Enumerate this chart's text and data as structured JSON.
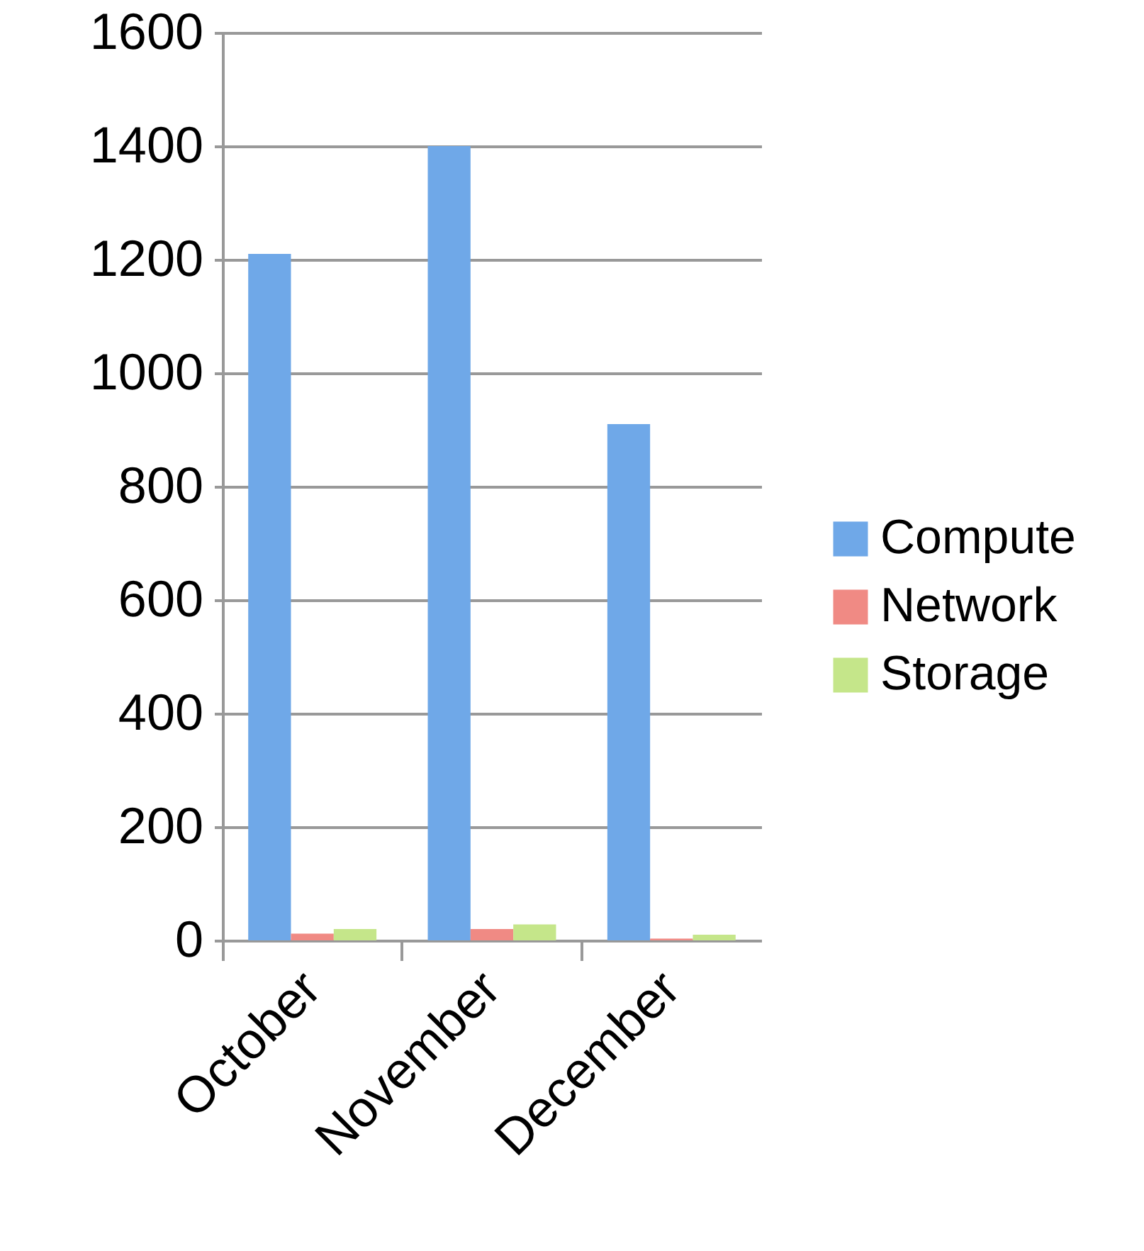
{
  "chart_data": {
    "type": "bar",
    "categories": [
      "October",
      "November",
      "December"
    ],
    "series": [
      {
        "name": "Compute",
        "color": "#6fa8e8",
        "values": [
          1210,
          1400,
          910
        ]
      },
      {
        "name": "Network",
        "color": "#f08a84",
        "values": [
          12,
          20,
          3
        ]
      },
      {
        "name": "Storage",
        "color": "#c5e68a",
        "values": [
          20,
          28,
          10
        ]
      }
    ],
    "ylim": [
      0,
      1600
    ],
    "yticks": [
      0,
      200,
      400,
      600,
      800,
      1000,
      1200,
      1400,
      1600
    ],
    "grid": "y",
    "legend": "right"
  }
}
